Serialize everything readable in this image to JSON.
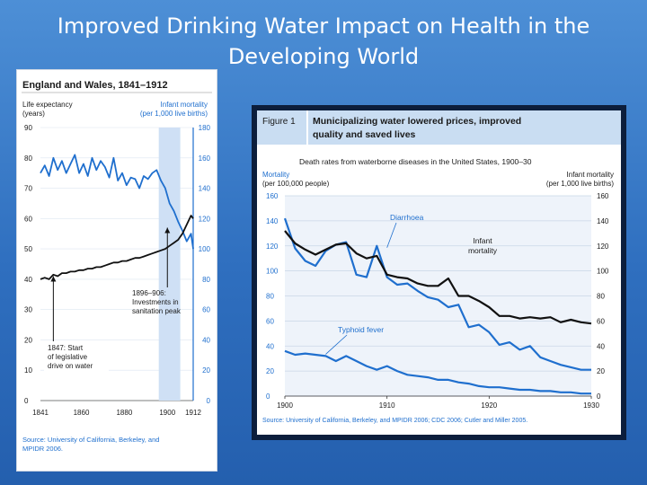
{
  "slide": {
    "title": "Improved Drinking Water Impact on Health in the Developing World",
    "colors": {
      "background": "#3a7bd5",
      "title_text": "#ffffff"
    }
  },
  "chart_data": [
    {
      "type": "line",
      "title": "England and Wales, 1841–1912",
      "left_axis_label": [
        "Life expectancy",
        "(years)"
      ],
      "right_axis_label": [
        "Infant mortality",
        "(per 1,000 live births)"
      ],
      "ylim_left": [
        0,
        90
      ],
      "ylim_right": [
        0,
        180
      ],
      "xlim": [
        1841,
        1912
      ],
      "x_ticks": [
        "1841",
        "1860",
        "1880",
        "1900",
        "1912"
      ],
      "x_tick_values": [
        1841,
        1860,
        1880,
        1900,
        1912
      ],
      "y_left_ticks": [
        "0",
        "10",
        "20",
        "30",
        "40",
        "50",
        "60",
        "70",
        "80",
        "90"
      ],
      "y_left_tick_values": [
        0,
        10,
        20,
        30,
        40,
        50,
        60,
        70,
        80,
        90
      ],
      "y_right_ticks": [
        "0",
        "20",
        "40",
        "60",
        "80",
        "100",
        "120",
        "140",
        "160",
        "180"
      ],
      "y_right_tick_values": [
        0,
        20,
        40,
        60,
        80,
        100,
        120,
        140,
        160,
        180
      ],
      "highlight_range": [
        1896,
        1906
      ],
      "series": [
        {
          "name": "Infant mortality",
          "axis": "right",
          "color": "#1f6fce",
          "x": [
            1841,
            1843,
            1845,
            1847,
            1849,
            1851,
            1853,
            1855,
            1857,
            1859,
            1861,
            1863,
            1865,
            1867,
            1869,
            1871,
            1873,
            1875,
            1877,
            1879,
            1881,
            1883,
            1885,
            1887,
            1889,
            1891,
            1893,
            1895,
            1897,
            1899,
            1901,
            1903,
            1905,
            1907,
            1909,
            1911,
            1912
          ],
          "values": [
            150,
            155,
            148,
            160,
            152,
            158,
            150,
            156,
            162,
            150,
            156,
            148,
            160,
            152,
            158,
            154,
            147,
            160,
            145,
            150,
            142,
            147,
            146,
            140,
            148,
            146,
            150,
            152,
            145,
            140,
            130,
            125,
            118,
            112,
            105,
            110,
            100
          ]
        },
        {
          "name": "Life expectancy",
          "axis": "left",
          "color": "#111111",
          "x": [
            1841,
            1843,
            1845,
            1847,
            1849,
            1851,
            1853,
            1855,
            1857,
            1859,
            1861,
            1863,
            1865,
            1867,
            1869,
            1871,
            1873,
            1875,
            1877,
            1879,
            1881,
            1883,
            1885,
            1887,
            1889,
            1891,
            1893,
            1895,
            1897,
            1899,
            1901,
            1903,
            1905,
            1907,
            1909,
            1911,
            1912
          ],
          "values": [
            40,
            40.5,
            40,
            41.5,
            41,
            42,
            42,
            42.5,
            42.5,
            43,
            43,
            43.5,
            43.5,
            44,
            44,
            44.5,
            45,
            45.5,
            45.5,
            46,
            46,
            46.5,
            47,
            47,
            47.5,
            48,
            48.5,
            49,
            49.5,
            50,
            51,
            52,
            53,
            55,
            58,
            61,
            60
          ]
        }
      ],
      "annotations": [
        {
          "lines": [
            "1896–906:",
            "Investments in",
            "sanitation peak"
          ],
          "target_year": 1900
        },
        {
          "lines": [
            "1847: Start",
            "of legislative",
            "drive on water"
          ],
          "target_year": 1847
        }
      ],
      "source": [
        "Source: University of California, Berkeley, and",
        "MPIDR 2006."
      ]
    },
    {
      "type": "line",
      "figure_label": "Figure 1",
      "headline": [
        "Municipalizing water lowered prices, improved",
        "quality and saved lives"
      ],
      "subtitle": "Death rates from waterborne diseases in the United States, 1900–30",
      "left_axis_label": [
        "Mortality",
        "(per 100,000 people)"
      ],
      "right_axis_label": [
        "Infant mortality",
        "(per 1,000 live births)"
      ],
      "ylim": [
        0,
        160
      ],
      "xlim": [
        1900,
        1930
      ],
      "x_ticks": [
        "1900",
        "1910",
        "1920",
        "1930"
      ],
      "x_tick_values": [
        1900,
        1910,
        1920,
        1930
      ],
      "y_ticks": [
        "0",
        "20",
        "40",
        "60",
        "80",
        "100",
        "120",
        "140",
        "160"
      ],
      "y_tick_values": [
        0,
        20,
        40,
        60,
        80,
        100,
        120,
        140,
        160
      ],
      "series": [
        {
          "name": "Diarrhoea",
          "color": "#1f6fce",
          "x": [
            1900,
            1901,
            1902,
            1903,
            1904,
            1905,
            1906,
            1907,
            1908,
            1909,
            1910,
            1911,
            1912,
            1913,
            1914,
            1915,
            1916,
            1917,
            1918,
            1919,
            1920,
            1921,
            1922,
            1923,
            1924,
            1925,
            1926,
            1927,
            1928,
            1929,
            1930
          ],
          "values": [
            142,
            118,
            108,
            104,
            116,
            121,
            123,
            97,
            95,
            120,
            95,
            89,
            90,
            84,
            79,
            77,
            71,
            73,
            55,
            57,
            51,
            41,
            43,
            37,
            40,
            31,
            28,
            25,
            23,
            21,
            21
          ]
        },
        {
          "name": "Infant mortality",
          "color": "#111111",
          "x": [
            1900,
            1901,
            1902,
            1903,
            1904,
            1905,
            1906,
            1907,
            1908,
            1909,
            1910,
            1911,
            1912,
            1913,
            1914,
            1915,
            1916,
            1917,
            1918,
            1919,
            1920,
            1921,
            1922,
            1923,
            1924,
            1925,
            1926,
            1927,
            1928,
            1929,
            1930
          ],
          "values": [
            132,
            122,
            117,
            113,
            117,
            121,
            122,
            114,
            110,
            112,
            97,
            95,
            94,
            90,
            88,
            88,
            94,
            80,
            80,
            76,
            71,
            64,
            64,
            62,
            63,
            62,
            63,
            59,
            61,
            59,
            58
          ]
        },
        {
          "name": "Typhoid fever",
          "color": "#1f6fce",
          "x": [
            1900,
            1901,
            1902,
            1903,
            1904,
            1905,
            1906,
            1907,
            1908,
            1909,
            1910,
            1911,
            1912,
            1913,
            1914,
            1915,
            1916,
            1917,
            1918,
            1919,
            1920,
            1921,
            1922,
            1923,
            1924,
            1925,
            1926,
            1927,
            1928,
            1929,
            1930
          ],
          "values": [
            36,
            33,
            34,
            33,
            32,
            28,
            32,
            28,
            24,
            21,
            24,
            20,
            17,
            16,
            15,
            13,
            13,
            11,
            10,
            8,
            7,
            7,
            6,
            5,
            5,
            4,
            4,
            3,
            3,
            2,
            2
          ]
        }
      ],
      "source": "Source: University of California, Berkeley, and MPIDR 2006; CDC 2006; Cutler and Miller 2005."
    }
  ]
}
